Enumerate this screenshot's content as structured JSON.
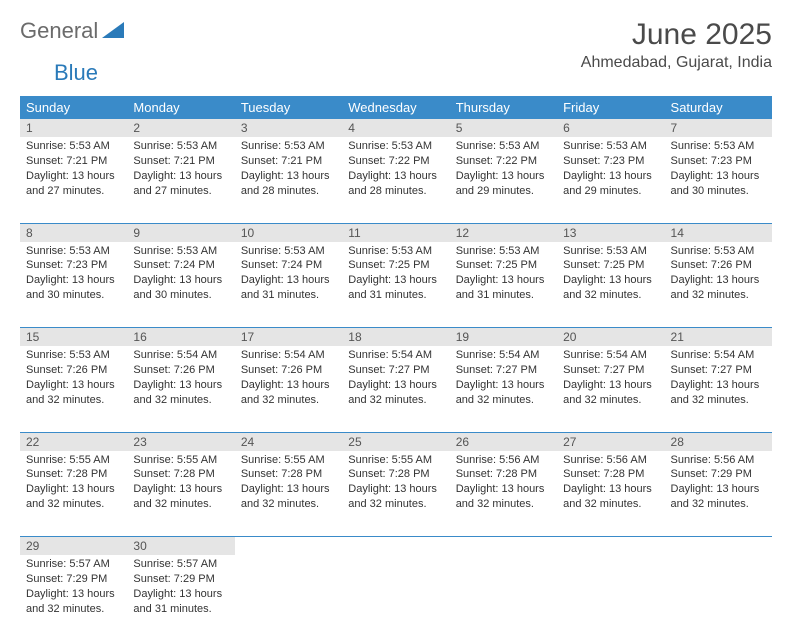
{
  "logo": {
    "text1": "General",
    "text2": "Blue"
  },
  "title": "June 2025",
  "location": "Ahmedabad, Gujarat, India",
  "colors": {
    "header_bg": "#3a8bc9",
    "header_fg": "#ffffff",
    "daynum_bg": "#e5e5e5",
    "border": "#3a8bc9",
    "logo_gray": "#6b6b6b",
    "logo_blue": "#2a7ab9"
  },
  "weekdays": [
    "Sunday",
    "Monday",
    "Tuesday",
    "Wednesday",
    "Thursday",
    "Friday",
    "Saturday"
  ],
  "weeks": [
    [
      {
        "d": "1",
        "sr": "5:53 AM",
        "ss": "7:21 PM",
        "dl": "13 hours and 27 minutes."
      },
      {
        "d": "2",
        "sr": "5:53 AM",
        "ss": "7:21 PM",
        "dl": "13 hours and 27 minutes."
      },
      {
        "d": "3",
        "sr": "5:53 AM",
        "ss": "7:21 PM",
        "dl": "13 hours and 28 minutes."
      },
      {
        "d": "4",
        "sr": "5:53 AM",
        "ss": "7:22 PM",
        "dl": "13 hours and 28 minutes."
      },
      {
        "d": "5",
        "sr": "5:53 AM",
        "ss": "7:22 PM",
        "dl": "13 hours and 29 minutes."
      },
      {
        "d": "6",
        "sr": "5:53 AM",
        "ss": "7:23 PM",
        "dl": "13 hours and 29 minutes."
      },
      {
        "d": "7",
        "sr": "5:53 AM",
        "ss": "7:23 PM",
        "dl": "13 hours and 30 minutes."
      }
    ],
    [
      {
        "d": "8",
        "sr": "5:53 AM",
        "ss": "7:23 PM",
        "dl": "13 hours and 30 minutes."
      },
      {
        "d": "9",
        "sr": "5:53 AM",
        "ss": "7:24 PM",
        "dl": "13 hours and 30 minutes."
      },
      {
        "d": "10",
        "sr": "5:53 AM",
        "ss": "7:24 PM",
        "dl": "13 hours and 31 minutes."
      },
      {
        "d": "11",
        "sr": "5:53 AM",
        "ss": "7:25 PM",
        "dl": "13 hours and 31 minutes."
      },
      {
        "d": "12",
        "sr": "5:53 AM",
        "ss": "7:25 PM",
        "dl": "13 hours and 31 minutes."
      },
      {
        "d": "13",
        "sr": "5:53 AM",
        "ss": "7:25 PM",
        "dl": "13 hours and 32 minutes."
      },
      {
        "d": "14",
        "sr": "5:53 AM",
        "ss": "7:26 PM",
        "dl": "13 hours and 32 minutes."
      }
    ],
    [
      {
        "d": "15",
        "sr": "5:53 AM",
        "ss": "7:26 PM",
        "dl": "13 hours and 32 minutes."
      },
      {
        "d": "16",
        "sr": "5:54 AM",
        "ss": "7:26 PM",
        "dl": "13 hours and 32 minutes."
      },
      {
        "d": "17",
        "sr": "5:54 AM",
        "ss": "7:26 PM",
        "dl": "13 hours and 32 minutes."
      },
      {
        "d": "18",
        "sr": "5:54 AM",
        "ss": "7:27 PM",
        "dl": "13 hours and 32 minutes."
      },
      {
        "d": "19",
        "sr": "5:54 AM",
        "ss": "7:27 PM",
        "dl": "13 hours and 32 minutes."
      },
      {
        "d": "20",
        "sr": "5:54 AM",
        "ss": "7:27 PM",
        "dl": "13 hours and 32 minutes."
      },
      {
        "d": "21",
        "sr": "5:54 AM",
        "ss": "7:27 PM",
        "dl": "13 hours and 32 minutes."
      }
    ],
    [
      {
        "d": "22",
        "sr": "5:55 AM",
        "ss": "7:28 PM",
        "dl": "13 hours and 32 minutes."
      },
      {
        "d": "23",
        "sr": "5:55 AM",
        "ss": "7:28 PM",
        "dl": "13 hours and 32 minutes."
      },
      {
        "d": "24",
        "sr": "5:55 AM",
        "ss": "7:28 PM",
        "dl": "13 hours and 32 minutes."
      },
      {
        "d": "25",
        "sr": "5:55 AM",
        "ss": "7:28 PM",
        "dl": "13 hours and 32 minutes."
      },
      {
        "d": "26",
        "sr": "5:56 AM",
        "ss": "7:28 PM",
        "dl": "13 hours and 32 minutes."
      },
      {
        "d": "27",
        "sr": "5:56 AM",
        "ss": "7:28 PM",
        "dl": "13 hours and 32 minutes."
      },
      {
        "d": "28",
        "sr": "5:56 AM",
        "ss": "7:29 PM",
        "dl": "13 hours and 32 minutes."
      }
    ],
    [
      {
        "d": "29",
        "sr": "5:57 AM",
        "ss": "7:29 PM",
        "dl": "13 hours and 32 minutes."
      },
      {
        "d": "30",
        "sr": "5:57 AM",
        "ss": "7:29 PM",
        "dl": "13 hours and 31 minutes."
      },
      null,
      null,
      null,
      null,
      null
    ]
  ],
  "labels": {
    "sunrise": "Sunrise:",
    "sunset": "Sunset:",
    "daylight": "Daylight:"
  }
}
